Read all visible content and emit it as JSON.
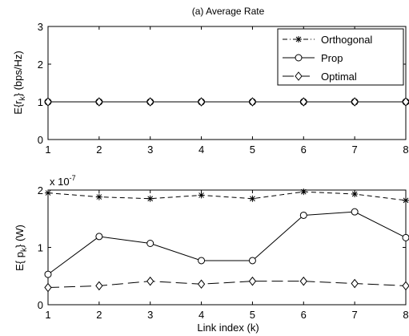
{
  "chart_data": [
    {
      "type": "line",
      "title": "(a) Average Rate",
      "xlabel": "",
      "ylabel": "E{r_k} (bps/Hz)",
      "ylabel_main": "E{r",
      "ylabel_sub": "k",
      "ylabel_tail": "} (bps/Hz)",
      "xlim": [
        1,
        8
      ],
      "ylim": [
        0,
        3
      ],
      "xticks": [
        "1",
        "2",
        "3",
        "4",
        "5",
        "6",
        "7",
        "8"
      ],
      "yticks": [
        "0",
        "1",
        "2",
        "3"
      ],
      "grid": false,
      "legend_position": "top-right",
      "x": [
        1,
        2,
        3,
        4,
        5,
        6,
        7,
        8
      ],
      "series": [
        {
          "name": "Orthogonal",
          "marker": "asterisk",
          "line": "dashdot",
          "values": [
            1,
            1,
            1,
            1,
            1,
            1,
            1,
            1
          ]
        },
        {
          "name": "Prop",
          "marker": "circle",
          "line": "solid",
          "values": [
            1,
            1,
            1,
            1,
            1,
            1,
            1,
            1
          ]
        },
        {
          "name": "Optimal",
          "marker": "diamond",
          "line": "longdash",
          "values": [
            1,
            1,
            1,
            1,
            1,
            1,
            1,
            1
          ]
        }
      ]
    },
    {
      "type": "line",
      "title": "",
      "xlabel": "Link index (k)",
      "ylabel": "E{ p_k} (W)",
      "ylabel_main": "E{ p",
      "ylabel_sub": "k",
      "ylabel_tail": "} (W)",
      "scale_main": "x 10",
      "scale_exp": "-7",
      "xlim": [
        1,
        8
      ],
      "ylim": [
        0,
        2
      ],
      "xticks": [
        "1",
        "2",
        "3",
        "4",
        "5",
        "6",
        "7",
        "8"
      ],
      "yticks": [
        "0",
        "1",
        "2"
      ],
      "grid": false,
      "x": [
        1,
        2,
        3,
        4,
        5,
        6,
        7,
        8
      ],
      "series": [
        {
          "name": "Orthogonal",
          "marker": "asterisk",
          "line": "dashed",
          "values": [
            1.95,
            1.88,
            1.85,
            1.91,
            1.85,
            1.97,
            1.93,
            1.82
          ]
        },
        {
          "name": "Prop",
          "marker": "circle",
          "line": "solid",
          "values": [
            0.53,
            1.19,
            1.07,
            0.77,
            0.77,
            1.56,
            1.62,
            1.17
          ]
        },
        {
          "name": "Optimal",
          "marker": "diamond",
          "line": "longdash",
          "values": [
            0.3,
            0.33,
            0.41,
            0.36,
            0.41,
            0.41,
            0.37,
            0.33
          ]
        }
      ]
    }
  ]
}
